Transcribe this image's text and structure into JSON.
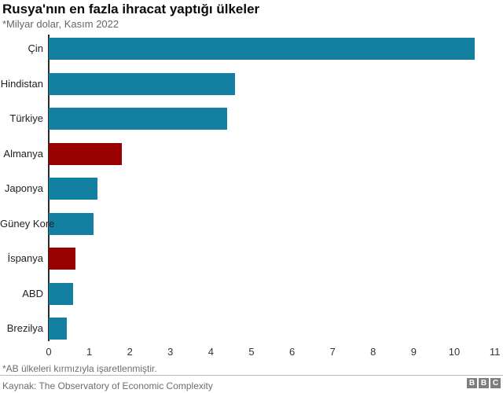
{
  "header": {
    "title": "Rusya'nın en fazla ihracat yaptığı ülkeler",
    "subtitle": "*Milyar dolar, Kasım 2022"
  },
  "chart_data": {
    "type": "bar",
    "orientation": "horizontal",
    "title": "Rusya'nın en fazla ihracat yaptığı ülkeler",
    "subtitle": "*Milyar dolar, Kasım 2022",
    "unit": "Milyar dolar",
    "categories": [
      "Çin",
      "Hindistan",
      "Türkiye",
      "Almanya",
      "Japonya",
      "Güney Kore",
      "İspanya",
      "ABD",
      "Brezilya"
    ],
    "values": [
      10.5,
      4.6,
      4.4,
      1.8,
      1.2,
      1.1,
      0.65,
      0.6,
      0.45
    ],
    "eu_flags": [
      false,
      false,
      false,
      true,
      false,
      false,
      true,
      false,
      false
    ],
    "colors": {
      "default": "#1380A1",
      "eu": "#990000"
    },
    "xlim": [
      0,
      11
    ],
    "x_ticks": [
      0,
      1,
      2,
      3,
      4,
      5,
      6,
      7,
      8,
      9,
      10,
      11
    ],
    "grid": false,
    "legend": "none"
  },
  "footer": {
    "note": "*AB ülkeleri kırmızıyla işaretlenmiştir.",
    "source": "Kaynak: The Observatory of Economic Complexity",
    "logo_blocks": [
      "B",
      "B",
      "C"
    ]
  }
}
